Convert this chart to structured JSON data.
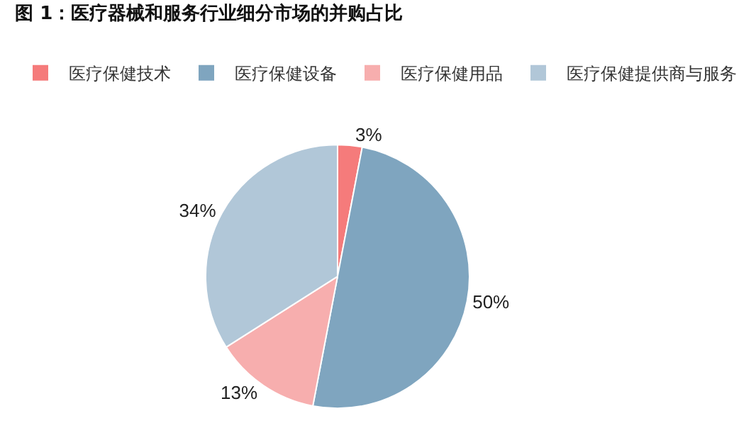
{
  "chart_data": {
    "type": "pie",
    "title": "图 1：医疗器械和服务行业细分市场的并购占比",
    "categories": [
      "医疗保健技术",
      "医疗保健设备",
      "医疗保健用品",
      "医疗保健提供商与服务"
    ],
    "values": [
      3,
      50,
      13,
      34
    ],
    "value_labels": [
      "3%",
      "50%",
      "13%",
      "34%"
    ],
    "colors": [
      "#f57b7b",
      "#7fa5bf",
      "#f7aeae",
      "#b1c7d8"
    ],
    "legend": "top"
  }
}
